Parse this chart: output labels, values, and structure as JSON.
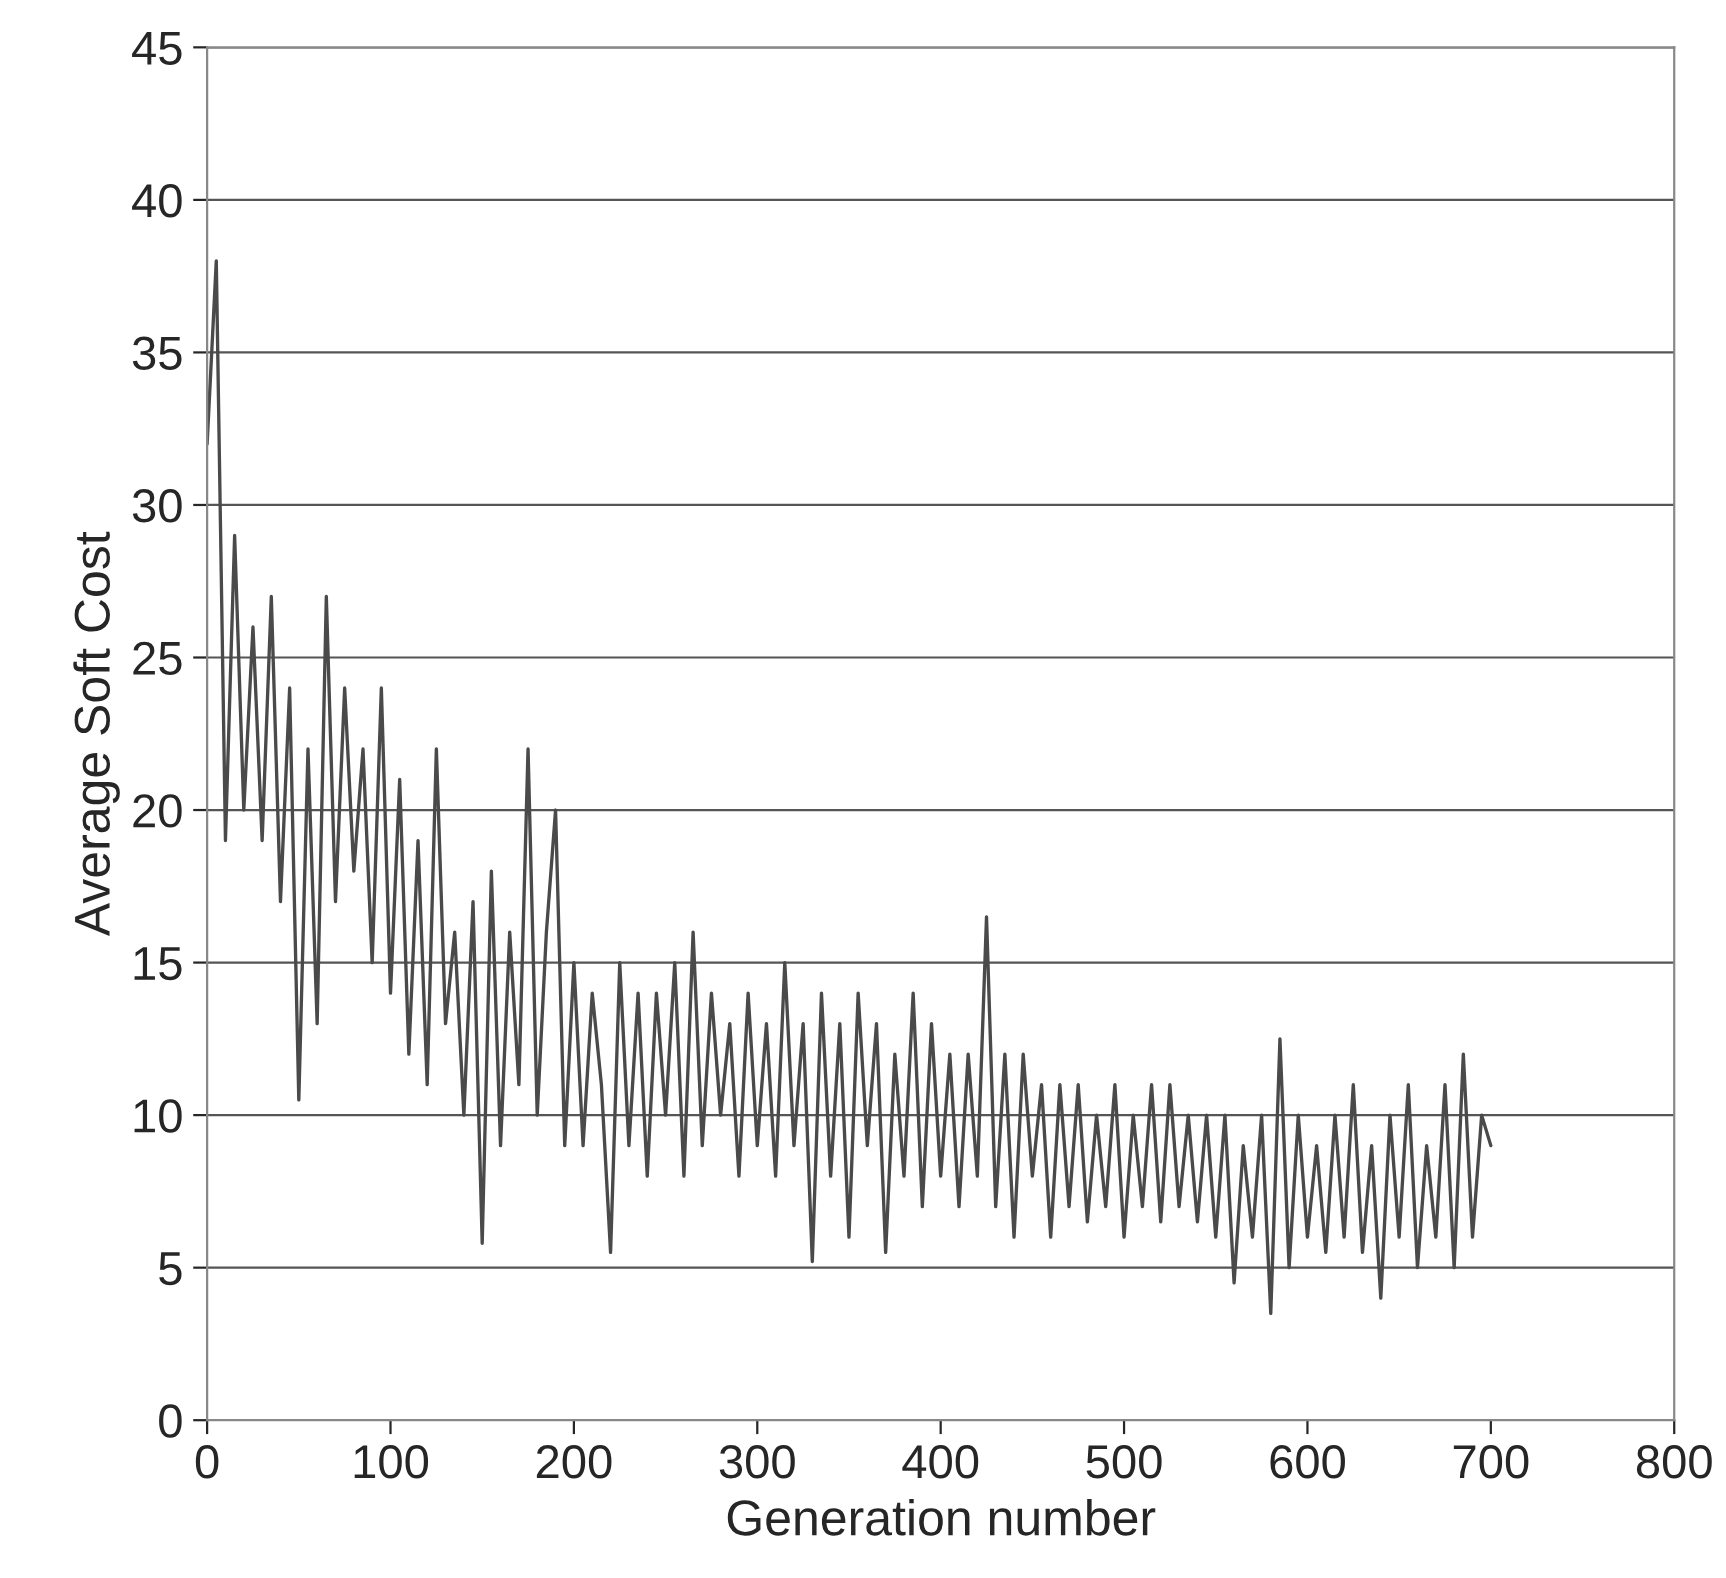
{
  "chart_data": {
    "type": "line",
    "xlabel": "Generation number",
    "ylabel": "Average Soft Cost",
    "xlim": [
      0,
      800
    ],
    "xticks": [
      0,
      100,
      200,
      300,
      400,
      500,
      600,
      700,
      800
    ],
    "ylim": [
      0,
      45
    ],
    "yticks": [
      0,
      5,
      10,
      15,
      20,
      25,
      30,
      35,
      40,
      45
    ],
    "grid": "y",
    "marker": "none",
    "line_style": "solid",
    "series": [
      {
        "color": "#4a4a4a",
        "x": [
          0,
          5,
          10,
          15,
          20,
          25,
          30,
          35,
          40,
          45,
          50,
          55,
          60,
          65,
          70,
          75,
          80,
          85,
          90,
          95,
          100,
          105,
          110,
          115,
          120,
          125,
          130,
          135,
          140,
          145,
          150,
          155,
          160,
          165,
          170,
          175,
          180,
          185,
          190,
          195,
          200,
          205,
          210,
          215,
          220,
          225,
          230,
          235,
          240,
          245,
          250,
          255,
          260,
          265,
          270,
          275,
          280,
          285,
          290,
          295,
          300,
          305,
          310,
          315,
          320,
          325,
          330,
          335,
          340,
          345,
          350,
          355,
          360,
          365,
          370,
          375,
          380,
          385,
          390,
          395,
          400,
          405,
          410,
          415,
          420,
          425,
          430,
          435,
          440,
          445,
          450,
          455,
          460,
          465,
          470,
          475,
          480,
          485,
          490,
          495,
          500,
          505,
          510,
          515,
          520,
          525,
          530,
          535,
          540,
          545,
          550,
          555,
          560,
          565,
          570,
          575,
          580,
          585,
          590,
          595,
          600,
          605,
          610,
          615,
          620,
          625,
          630,
          635,
          640,
          645,
          650,
          655,
          660,
          665,
          670,
          675,
          680,
          685,
          690,
          695,
          700
        ],
        "values": [
          32,
          38,
          19,
          29,
          20,
          26,
          19,
          27,
          17,
          24,
          10.5,
          22,
          13,
          27,
          17,
          24,
          18,
          22,
          15,
          24,
          14,
          21,
          12,
          19,
          11,
          22,
          13,
          16,
          10,
          17,
          5.8,
          18,
          9,
          16,
          11,
          22,
          10,
          16,
          20,
          9,
          15,
          9,
          14,
          11,
          5.5,
          15,
          9,
          14,
          8,
          14,
          10,
          15,
          8,
          16,
          9,
          14,
          10,
          13,
          8,
          14,
          9,
          13,
          8,
          15,
          9,
          13,
          5.2,
          14,
          8,
          13,
          6,
          14,
          9,
          13,
          5.5,
          12,
          8,
          14,
          7,
          13,
          8,
          12,
          7,
          12,
          8,
          16.5,
          7,
          12,
          6,
          12,
          8,
          11,
          6,
          11,
          7,
          11,
          6.5,
          10,
          7,
          11,
          6,
          10,
          7,
          11,
          6.5,
          11,
          7,
          10,
          6.5,
          10,
          6,
          10,
          4.5,
          9,
          6,
          10,
          3.5,
          12.5,
          5,
          10,
          6,
          9,
          5.5,
          10,
          6,
          11,
          5.5,
          9,
          4,
          10,
          6,
          11,
          5,
          9,
          6,
          11,
          5,
          12,
          6,
          10,
          9
        ]
      }
    ]
  }
}
